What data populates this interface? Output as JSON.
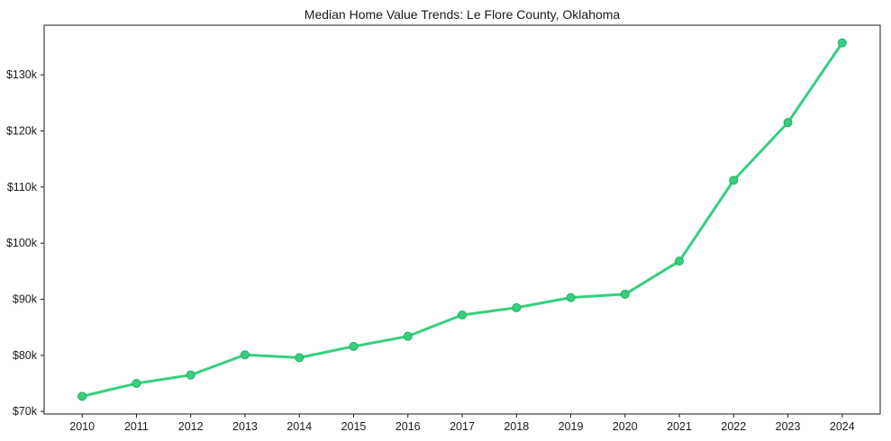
{
  "chart_data": {
    "type": "line",
    "title": "Median Home Value Trends: Le Flore County, Oklahoma",
    "xlabel": "",
    "ylabel": "",
    "x": [
      2010,
      2011,
      2012,
      2013,
      2014,
      2015,
      2016,
      2017,
      2018,
      2019,
      2020,
      2021,
      2022,
      2023,
      2024
    ],
    "x_tick_labels": [
      "2010",
      "2011",
      "2012",
      "2013",
      "2014",
      "2015",
      "2016",
      "2017",
      "2018",
      "2019",
      "2020",
      "2021",
      "2022",
      "2023",
      "2024"
    ],
    "values": [
      72700,
      75000,
      76500,
      80100,
      79600,
      81600,
      83400,
      87200,
      88500,
      90300,
      90900,
      96800,
      111200,
      121500,
      135700
    ],
    "yticks": [
      70000,
      80000,
      90000,
      100000,
      110000,
      120000,
      130000
    ],
    "ytick_labels": [
      "$70k",
      "$80k",
      "$90k",
      "$100k",
      "$110k",
      "$120k",
      "$130k"
    ],
    "xlim": [
      2009.3,
      2024.7
    ],
    "ylim": [
      69550,
      138850
    ],
    "grid": false,
    "legend": false,
    "line_color": "#35d07e",
    "marker_color": "#35d07e",
    "marker_edge_color": "#22ab63",
    "axis_color": "#1a1a1a",
    "text_color": "#1a1a1a"
  }
}
